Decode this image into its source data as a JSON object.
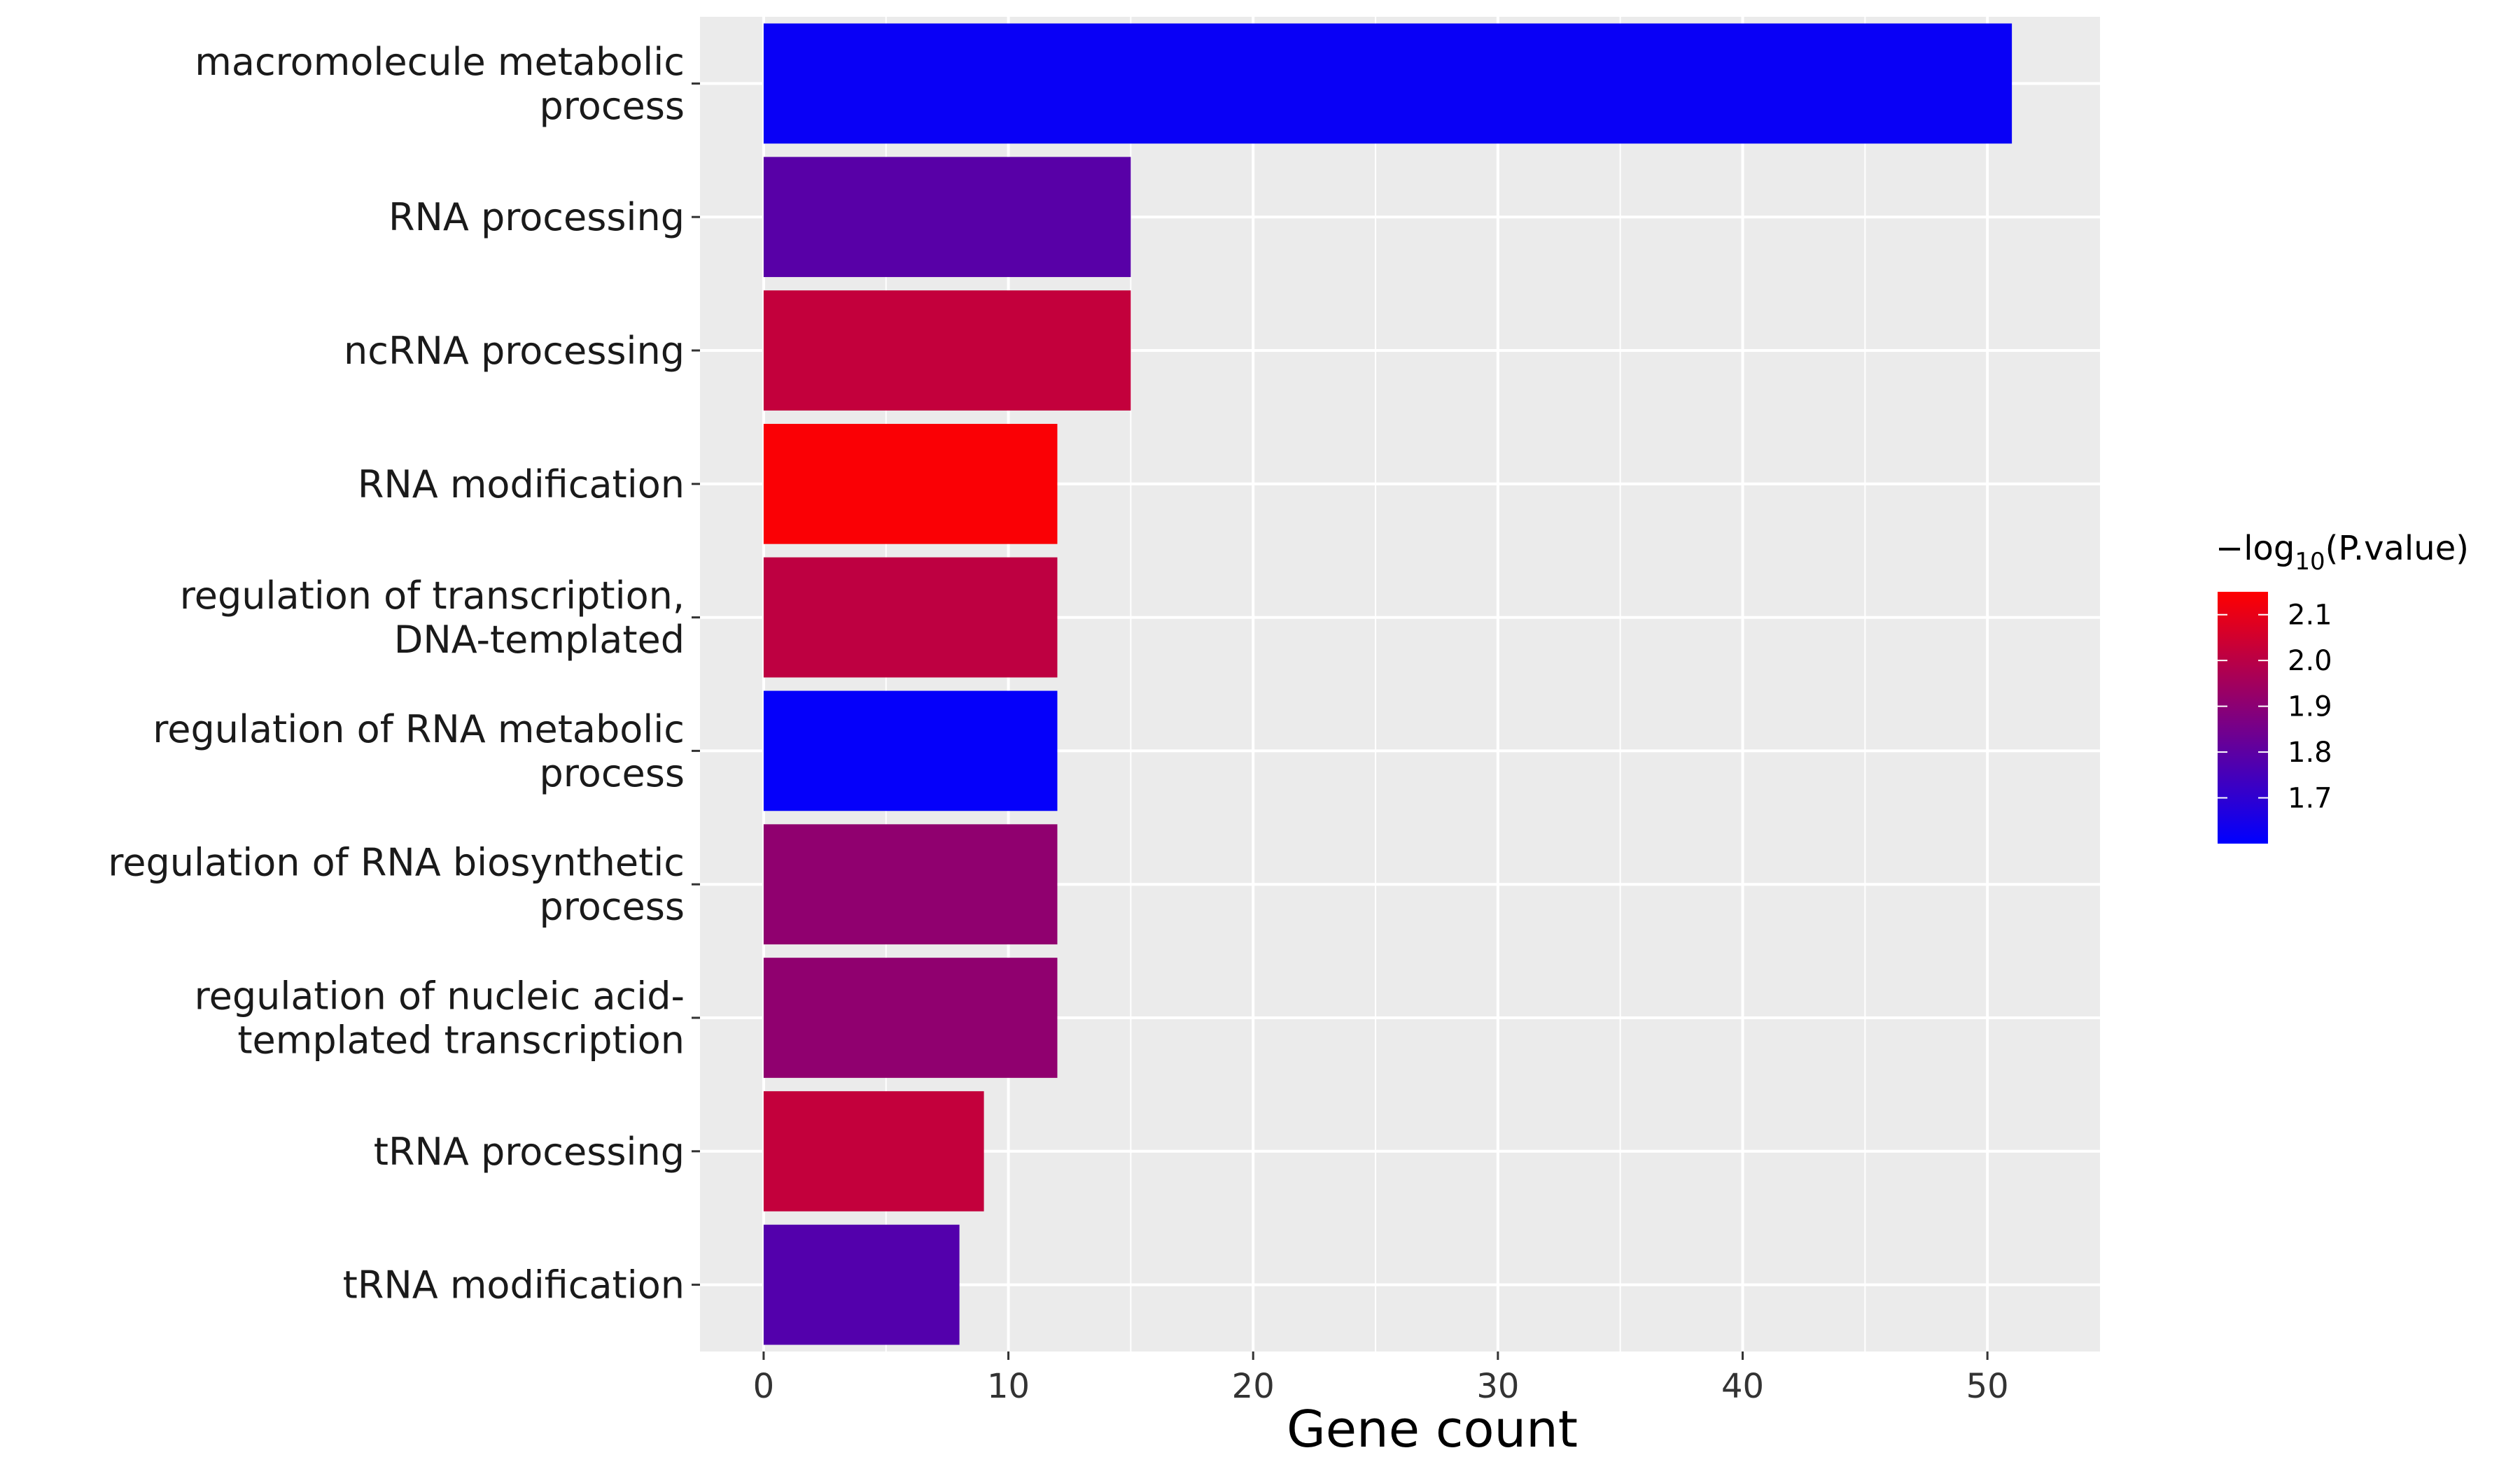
{
  "chart_data": {
    "type": "bar",
    "orientation": "horizontal",
    "categories": [
      "macromolecule metabolic process",
      "RNA processing",
      "ncRNA processing",
      "RNA modification",
      "regulation of transcription, DNA-templated",
      "regulation of RNA metabolic process",
      "regulation of RNA biosynthetic process",
      "regulation of nucleic acid-templated transcription",
      "tRNA processing",
      "tRNA modification"
    ],
    "category_label_lines": [
      [
        "macromolecule metabolic",
        "process"
      ],
      [
        "RNA processing"
      ],
      [
        "ncRNA processing"
      ],
      [
        "RNA modification"
      ],
      [
        "regulation of transcription,",
        "DNA-templated"
      ],
      [
        "regulation of RNA metabolic",
        "process"
      ],
      [
        "regulation of RNA biosynthetic",
        "process"
      ],
      [
        "regulation of nucleic acid-",
        "templated transcription"
      ],
      [
        "tRNA processing"
      ],
      [
        "tRNA modification"
      ]
    ],
    "values": [
      51,
      15,
      15,
      12,
      12,
      12,
      12,
      12,
      9,
      8
    ],
    "color_values": [
      1.62,
      1.79,
      2.02,
      2.14,
      2.01,
      1.61,
      1.91,
      1.91,
      2.02,
      1.78
    ],
    "xlabel": "Gene count",
    "xlim": [
      -2.6,
      54.6
    ],
    "xticks": [
      0,
      10,
      20,
      30,
      40,
      50
    ],
    "grid": true,
    "legend": {
      "title_prefix": "−log",
      "title_subscript": "10",
      "title_suffix": "(P.value)",
      "placement": "right",
      "ticks": [
        2.1,
        2.0,
        1.9,
        1.8,
        1.7
      ],
      "tick_labels": [
        "2.1",
        "2.0",
        "1.9",
        "1.8",
        "1.7"
      ],
      "range": [
        1.6,
        2.15
      ],
      "low_color": "#0000ff",
      "high_color": "#ff0000"
    }
  },
  "colors": {
    "panel_background": "#ebebeb",
    "grid_color": "#ffffff"
  }
}
